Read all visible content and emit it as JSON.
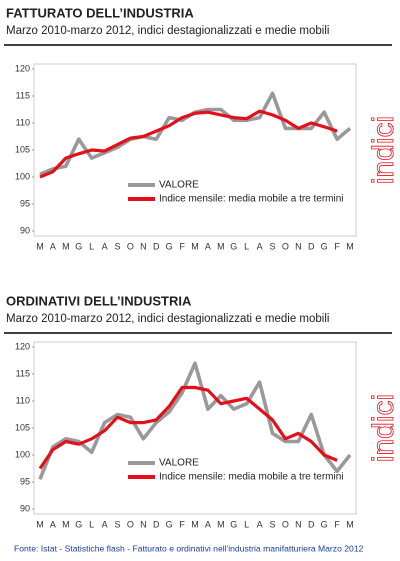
{
  "chart_data": [
    {
      "type": "line",
      "title": "FATTURATO DELL’INDUSTRIA",
      "subtitle": "Marzo 2010-marzo 2012, indici destagionalizzati e medie mobili",
      "side_label": "indici",
      "categories": [
        "M",
        "A",
        "M",
        "G",
        "L",
        "A",
        "S",
        "O",
        "N",
        "D",
        "G",
        "F",
        "M",
        "A",
        "M",
        "G",
        "L",
        "A",
        "S",
        "O",
        "N",
        "D",
        "G",
        "F",
        "M"
      ],
      "series": [
        {
          "name": "VALORE",
          "color": "#999999",
          "values": [
            100.5,
            101.5,
            102,
            107,
            103.5,
            104.5,
            105.5,
            107,
            107.5,
            107,
            111,
            110.5,
            112,
            112.5,
            112.5,
            110.5,
            110.5,
            111,
            115.5,
            109,
            109,
            109,
            112,
            107,
            109
          ]
        },
        {
          "name": "Indice mensile: media mobile a tre termini",
          "color": "#e3101a",
          "values": [
            100,
            101,
            103.5,
            104.3,
            105,
            104.8,
            106,
            107.2,
            107.5,
            108.5,
            109.5,
            111,
            111.8,
            112,
            111.5,
            111,
            110.8,
            112.2,
            111.5,
            110.5,
            109,
            110,
            109.3,
            108.5,
            null
          ]
        }
      ],
      "ylim": [
        90,
        120
      ],
      "yticks": [
        90,
        95,
        100,
        105,
        110,
        115,
        120
      ]
    },
    {
      "type": "line",
      "title": "ORDINATIVI DELL’INDUSTRIA",
      "subtitle": "Marzo 2010-marzo 2012, indici destagionalizzati e medie mobili",
      "side_label": "indici",
      "categories": [
        "M",
        "A",
        "M",
        "G",
        "L",
        "A",
        "S",
        "O",
        "N",
        "D",
        "G",
        "F",
        "M",
        "A",
        "M",
        "G",
        "L",
        "A",
        "S",
        "O",
        "N",
        "D",
        "G",
        "F",
        "M"
      ],
      "series": [
        {
          "name": "VALORE",
          "color": "#999999",
          "values": [
            95.5,
            101.5,
            103,
            102.5,
            100.5,
            106,
            107.5,
            107,
            103,
            106,
            108,
            111.5,
            117,
            108.5,
            111,
            108.5,
            109.5,
            113.5,
            104,
            102.5,
            102.5,
            107.5,
            100,
            97,
            100
          ]
        },
        {
          "name": "Indice mensile: media mobile a tre termini",
          "color": "#e3101a",
          "values": [
            97.5,
            101,
            102.5,
            102,
            103,
            104.5,
            107,
            106,
            106,
            106.5,
            109,
            112.5,
            112.5,
            112,
            109.5,
            110,
            110.5,
            108.5,
            106.5,
            103,
            104,
            102.5,
            100,
            99,
            null
          ]
        }
      ],
      "ylim": [
        90,
        120
      ],
      "yticks": [
        90,
        95,
        100,
        105,
        110,
        115,
        120
      ]
    }
  ],
  "source": "Fonte: Istat - Statistiche flash -  Fatturato e ordinativi nell'industria manifatturiera Marzo 2012"
}
